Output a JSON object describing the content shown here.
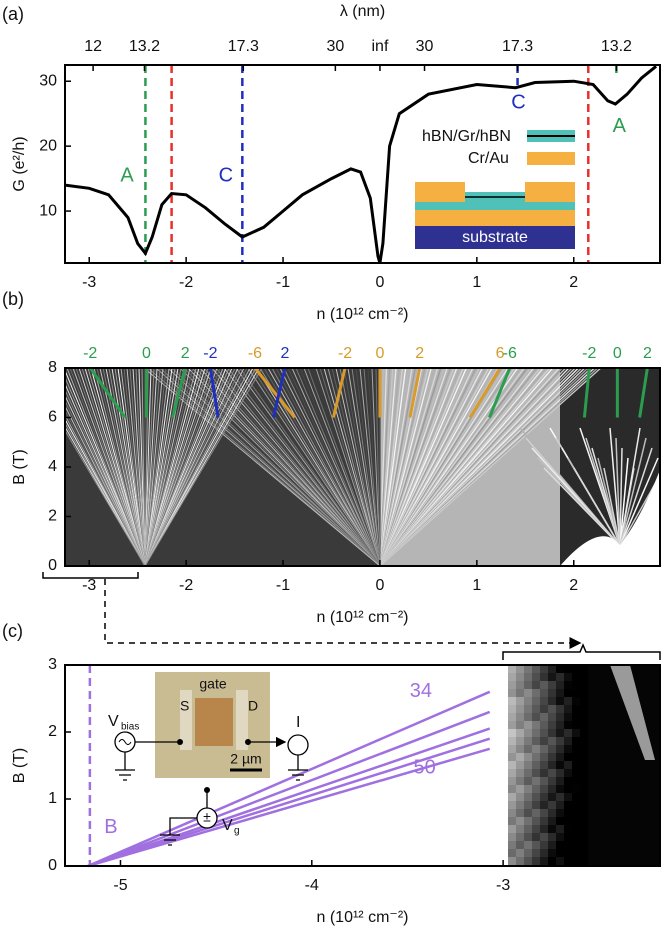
{
  "chart_data": [
    {
      "type": "line",
      "panel_label": "(a)",
      "x2label": "λ (nm)",
      "xlabel": "n (10¹² cm⁻²)",
      "ylabel": "G (e²/h)",
      "xlim": [
        -3.25,
        2.89
      ],
      "ylim": [
        2,
        32.5
      ],
      "xticks": [
        -3,
        -2,
        -1,
        0,
        1,
        2
      ],
      "yticks": [
        10,
        20,
        30
      ],
      "x2ticks": [
        {
          "value": -2.96,
          "label": "12"
        },
        {
          "value": -2.43,
          "label": "13.2"
        },
        {
          "value": -1.41,
          "label": "17.3"
        },
        {
          "value": -0.46,
          "label": "30"
        },
        {
          "value": 0,
          "label": "inf"
        },
        {
          "value": 0.46,
          "label": "30"
        },
        {
          "value": 1.42,
          "label": "17.3"
        },
        {
          "value": 2.44,
          "label": "13.2"
        }
      ],
      "x": [
        -3.25,
        -3.0,
        -2.8,
        -2.6,
        -2.5,
        -2.42,
        -2.35,
        -2.25,
        -2.15,
        -2.0,
        -1.8,
        -1.6,
        -1.42,
        -1.2,
        -1.0,
        -0.8,
        -0.5,
        -0.3,
        -0.2,
        -0.1,
        -0.02,
        0,
        0.03,
        0.1,
        0.2,
        0.5,
        1.0,
        1.4,
        1.6,
        2.0,
        2.2,
        2.35,
        2.43,
        2.55,
        2.7,
        2.85
      ],
      "series": [
        {
          "color": "#000000",
          "values": [
            14,
            13.5,
            12.5,
            9,
            5,
            3.5,
            6,
            11,
            12.7,
            12.5,
            10.5,
            8,
            6,
            7.5,
            10,
            12.5,
            15,
            16.5,
            16,
            12,
            3,
            2,
            5,
            20,
            25,
            28,
            29.5,
            29,
            29.8,
            30,
            29.5,
            27,
            26.5,
            28,
            30.5,
            32.3
          ]
        }
      ],
      "vlines": [
        {
          "x": -2.42,
          "color": "#2a9d4f"
        },
        {
          "x": -2.15,
          "color": "#e8302a"
        },
        {
          "x": -1.42,
          "color": "#1f2fbf"
        },
        {
          "x": 1.42,
          "color": "#1f2fbf",
          "y_end": 29.4
        },
        {
          "x": 2.15,
          "color": "#e8302a"
        },
        {
          "x": 2.44,
          "color": "#2a9d4f",
          "y_end": 31
        }
      ],
      "annotations": [
        {
          "text": "A",
          "x": -2.61,
          "y": 15.4,
          "color": "#2a9d4f"
        },
        {
          "text": "C",
          "x": -1.59,
          "y": 15.4,
          "color": "#1f2fbf"
        },
        {
          "text": "C",
          "x": 1.43,
          "y": 26.6,
          "color": "#1f2fbf"
        },
        {
          "text": "A",
          "x": 2.47,
          "y": 23,
          "color": "#2a9d4f"
        }
      ],
      "inset": {
        "layers": [
          "hBN/Gr/hBN",
          "Cr/Au"
        ],
        "substrate": "substrate"
      }
    },
    {
      "type": "fan",
      "panel_label": "(b)",
      "xlabel": "n (10¹² cm⁻²)",
      "ylabel": "B (T)",
      "xlim": [
        -3.25,
        2.89
      ],
      "ylim": [
        0,
        8
      ],
      "xticks": [
        -3,
        -2,
        -1,
        0,
        1,
        2
      ],
      "yticks": [
        0,
        2,
        4,
        6,
        8
      ],
      "annotations": [
        {
          "text": "-2",
          "x": -2.99,
          "x_end": -2.63,
          "color": "#2a9d4f"
        },
        {
          "text": "0",
          "x": -2.41,
          "x_end": -2.41,
          "color": "#2a9d4f"
        },
        {
          "text": "2",
          "x": -2.01,
          "x_end": -2.14,
          "color": "#2a9d4f"
        },
        {
          "text": "-2",
          "x": -1.75,
          "x_end": -1.67,
          "color": "#1f2fbf"
        },
        {
          "text": "-6",
          "x": -1.29,
          "x_end": -0.88,
          "color": "#d89a2a"
        },
        {
          "text": "2",
          "x": -0.98,
          "x_end": -1.1,
          "color": "#1f2fbf"
        },
        {
          "text": "-2",
          "x": -0.36,
          "x_end": -0.48,
          "color": "#d89a2a"
        },
        {
          "text": "0",
          "x": 0,
          "x_end": 0,
          "color": "#d89a2a"
        },
        {
          "text": "2",
          "x": 0.41,
          "x_end": 0.31,
          "color": "#d89a2a"
        },
        {
          "text": "6",
          "x": 1.24,
          "x_end": 0.93,
          "color": "#d89a2a"
        },
        {
          "text": "-6",
          "x": 1.34,
          "x_end": 1.13,
          "color": "#2a9d4f"
        },
        {
          "text": "-2",
          "x": 2.16,
          "x_end": 2.11,
          "color": "#2a9d4f"
        },
        {
          "text": "0",
          "x": 2.45,
          "x_end": 2.45,
          "color": "#2a9d4f"
        },
        {
          "text": "2",
          "x": 2.76,
          "x_end": 2.68,
          "color": "#2a9d4f"
        }
      ]
    },
    {
      "type": "line",
      "panel_label": "(c)",
      "xlabel": "n (10¹² cm⁻²)",
      "ylabel": "B (T)",
      "xlim": [
        -5.29,
        -2.18
      ],
      "ylim": [
        0,
        3
      ],
      "xticks": [
        -5,
        -4,
        -3
      ],
      "yticks": [
        0,
        1,
        2,
        3
      ],
      "series": [
        {
          "color": "#a070e0",
          "x": [
            -5.17,
            -3.07
          ],
          "values": [
            0,
            2.6
          ]
        },
        {
          "color": "#a070e0",
          "x": [
            -5.17,
            -3.07
          ],
          "values": [
            0,
            2.3
          ]
        },
        {
          "color": "#a070e0",
          "x": [
            -5.17,
            -3.07
          ],
          "values": [
            0,
            2.05
          ]
        },
        {
          "color": "#a070e0",
          "x": [
            -5.17,
            -3.07
          ],
          "values": [
            0,
            1.9
          ]
        },
        {
          "color": "#a070e0",
          "x": [
            -5.17,
            -3.07
          ],
          "values": [
            0,
            1.75
          ]
        }
      ],
      "vlines": [
        {
          "x": -5.16,
          "color": "#a070e0"
        }
      ],
      "annotations": [
        {
          "text": "34",
          "x": -3.43,
          "y": 2.6,
          "color": "#a070e0"
        },
        {
          "text": "50",
          "x": -3.41,
          "y": 1.46,
          "color": "#a070e0"
        },
        {
          "text": "B",
          "x": -5.05,
          "y": 0.57,
          "color": "#a070e0"
        }
      ],
      "inset": {
        "gate": "gate",
        "source": "S",
        "drain": "D",
        "vbias": "V",
        "vbias_sub": "bias",
        "current": "I",
        "vg": "V",
        "vg_sub": "g",
        "scale": "2 µm"
      }
    }
  ]
}
